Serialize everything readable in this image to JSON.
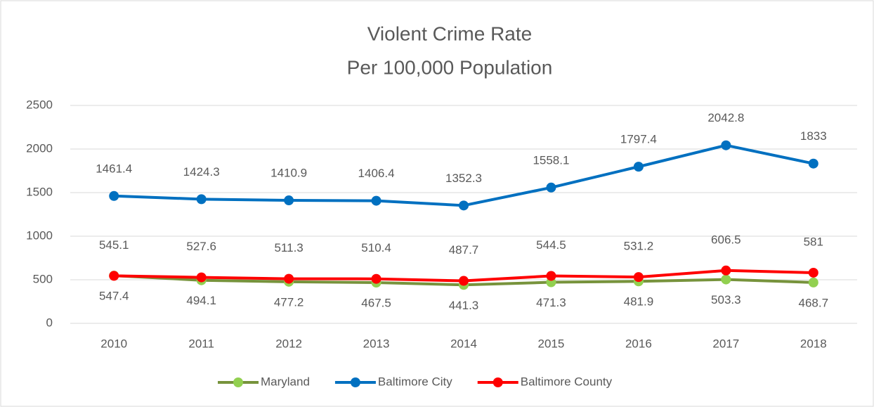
{
  "chart_data": {
    "type": "line",
    "title": "Violent Crime Rate",
    "subtitle": "Per 100,000 Population",
    "categories": [
      "2010",
      "2011",
      "2012",
      "2013",
      "2014",
      "2015",
      "2016",
      "2017",
      "2018"
    ],
    "series": [
      {
        "name": "Maryland",
        "color": "#77933c",
        "marker_color": "#92d050",
        "values": [
          547.4,
          494.1,
          477.2,
          467.5,
          441.3,
          471.3,
          481.9,
          503.3,
          468.7
        ]
      },
      {
        "name": "Baltimore City",
        "color": "#0070c0",
        "marker_color": "#0070c0",
        "values": [
          1461.4,
          1424.3,
          1410.9,
          1406.4,
          1352.3,
          1558.1,
          1797.4,
          2042.8,
          1833
        ]
      },
      {
        "name": "Baltimore County",
        "color": "#ff0000",
        "marker_color": "#ff0000",
        "values": [
          545.1,
          527.6,
          511.3,
          510.4,
          487.7,
          544.5,
          531.2,
          606.5,
          581
        ]
      }
    ],
    "ylim": [
      0,
      2500
    ],
    "yticks": [
      0,
      500,
      1000,
      1500,
      2000,
      2500
    ],
    "grid": true,
    "legend": "bottom"
  }
}
